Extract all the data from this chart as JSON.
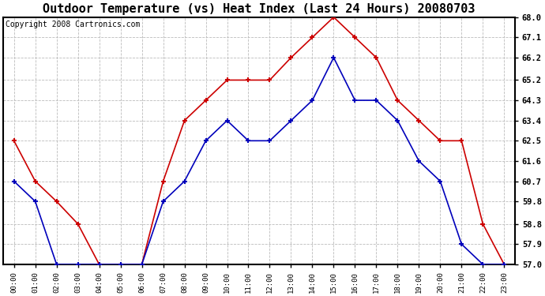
{
  "title": "Outdoor Temperature (vs) Heat Index (Last 24 Hours) 20080703",
  "copyright": "Copyright 2008 Cartronics.com",
  "hours": [
    "00:00",
    "01:00",
    "02:00",
    "03:00",
    "04:00",
    "05:00",
    "06:00",
    "07:00",
    "08:00",
    "09:00",
    "10:00",
    "11:00",
    "12:00",
    "13:00",
    "14:00",
    "15:00",
    "16:00",
    "17:00",
    "18:00",
    "19:00",
    "20:00",
    "21:00",
    "22:00",
    "23:00"
  ],
  "temp": [
    60.7,
    59.8,
    57.0,
    57.0,
    57.0,
    57.0,
    57.0,
    59.8,
    60.7,
    62.5,
    63.4,
    62.5,
    62.5,
    63.4,
    64.3,
    66.2,
    64.3,
    64.3,
    63.4,
    61.6,
    60.7,
    57.9,
    57.0,
    57.0
  ],
  "heat_index": [
    62.5,
    60.7,
    59.8,
    58.8,
    57.0,
    57.0,
    57.0,
    60.7,
    63.4,
    64.3,
    65.2,
    65.2,
    65.2,
    66.2,
    67.1,
    68.0,
    67.1,
    66.2,
    64.3,
    63.4,
    62.5,
    62.5,
    58.8,
    57.0
  ],
  "ylim_min": 57.0,
  "ylim_max": 68.0,
  "yticks": [
    57.0,
    57.9,
    58.8,
    59.8,
    60.7,
    61.6,
    62.5,
    63.4,
    64.3,
    65.2,
    66.2,
    67.1,
    68.0
  ],
  "temp_color": "#0000bb",
  "heat_color": "#cc0000",
  "bg_color": "#ffffff",
  "plot_bg": "#ffffff",
  "grid_color": "#bbbbbb",
  "title_fontsize": 11,
  "copyright_fontsize": 7
}
